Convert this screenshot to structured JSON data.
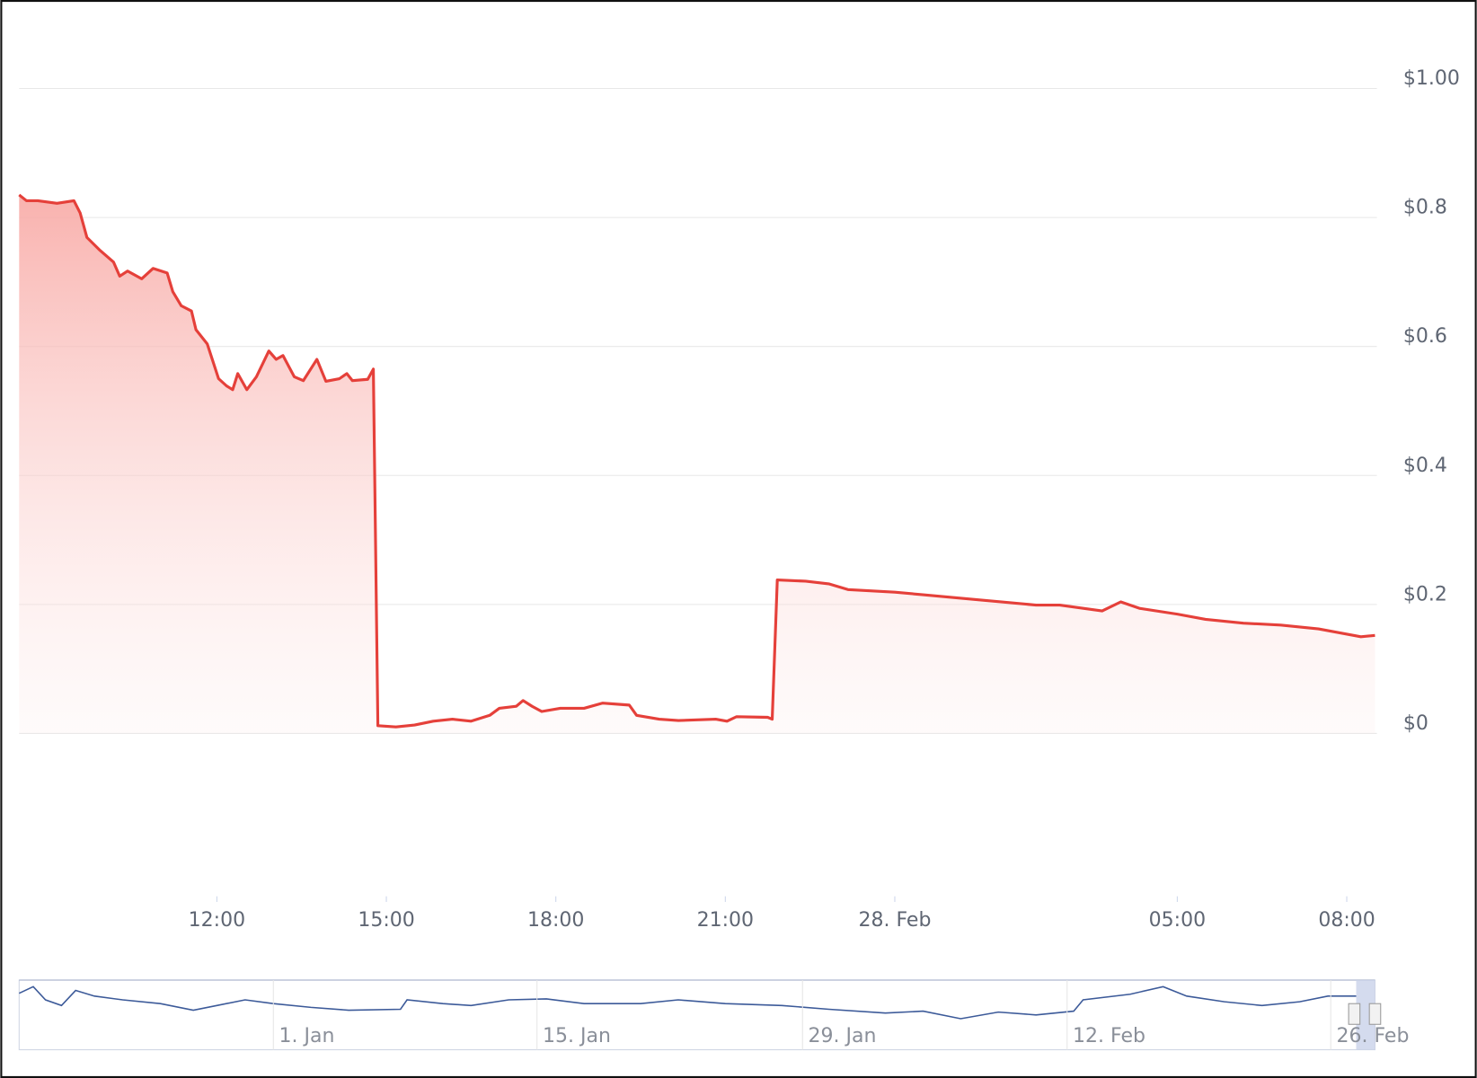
{
  "chart_data": {
    "type": "line",
    "color": "#e5403a",
    "grid": true,
    "x": [
      8.5,
      8.63,
      8.83,
      9.17,
      9.47,
      9.58,
      9.7,
      9.92,
      10.17,
      10.28,
      10.42,
      10.67,
      10.87,
      11.12,
      11.22,
      11.37,
      11.55,
      11.63,
      11.83,
      12.03,
      12.17,
      12.28,
      12.37,
      12.53,
      12.7,
      12.92,
      13.05,
      13.17,
      13.37,
      13.53,
      13.77,
      13.93,
      14.17,
      14.3,
      14.4,
      14.67,
      14.77,
      14.85,
      15.17,
      15.5,
      15.83,
      16.17,
      16.5,
      16.83,
      17,
      17.3,
      17.42,
      17.58,
      17.75,
      18.08,
      18.5,
      18.83,
      19.3,
      19.43,
      19.83,
      20.17,
      20.83,
      21.03,
      21.2,
      21.75,
      21.83,
      21.92,
      22.42,
      22.83,
      23.17,
      24,
      24.5,
      25.5,
      26.5,
      26.92,
      27.67,
      28,
      28.33,
      29,
      29.5,
      30.17,
      30.83,
      31.5,
      32.25,
      32.5
    ],
    "values": [
      0.835,
      0.826,
      0.826,
      0.822,
      0.826,
      0.807,
      0.769,
      0.75,
      0.731,
      0.709,
      0.717,
      0.705,
      0.721,
      0.714,
      0.685,
      0.663,
      0.655,
      0.626,
      0.604,
      0.55,
      0.539,
      0.533,
      0.558,
      0.533,
      0.553,
      0.593,
      0.58,
      0.586,
      0.553,
      0.547,
      0.58,
      0.546,
      0.55,
      0.558,
      0.547,
      0.549,
      0.565,
      0.012,
      0.01,
      0.013,
      0.019,
      0.022,
      0.019,
      0.028,
      0.039,
      0.042,
      0.051,
      0.042,
      0.034,
      0.039,
      0.039,
      0.047,
      0.044,
      0.028,
      0.022,
      0.02,
      0.022,
      0.019,
      0.026,
      0.025,
      0.022,
      0.238,
      0.236,
      0.232,
      0.223,
      0.219,
      0.215,
      0.207,
      0.199,
      0.199,
      0.19,
      0.204,
      0.194,
      0.185,
      0.177,
      0.171,
      0.168,
      0.162,
      0.15,
      0.152
    ],
    "xlim": [
      8.5,
      32.5
    ],
    "xticks": [
      {
        "value": 12,
        "label": "12:00"
      },
      {
        "value": 15,
        "label": "15:00"
      },
      {
        "value": 18,
        "label": "18:00"
      },
      {
        "value": 21,
        "label": "21:00"
      },
      {
        "value": 24,
        "label": "28. Feb"
      },
      {
        "value": 29,
        "label": "05:00"
      },
      {
        "value": 32,
        "label": "08:00"
      }
    ],
    "ylim": [
      0,
      1
    ],
    "yticks": [
      {
        "value": 0,
        "label": "$0"
      },
      {
        "value": 0.2,
        "label": "$0.2"
      },
      {
        "value": 0.4,
        "label": "$0.4"
      },
      {
        "value": 0.6,
        "label": "$0.6"
      },
      {
        "value": 0.8,
        "label": "$0.8"
      },
      {
        "value": 1,
        "label": "$1.00"
      }
    ],
    "navigator_labels": [
      "1. Jan",
      "15. Jan",
      "29. Jan",
      "12. Feb",
      "26. Feb"
    ]
  }
}
